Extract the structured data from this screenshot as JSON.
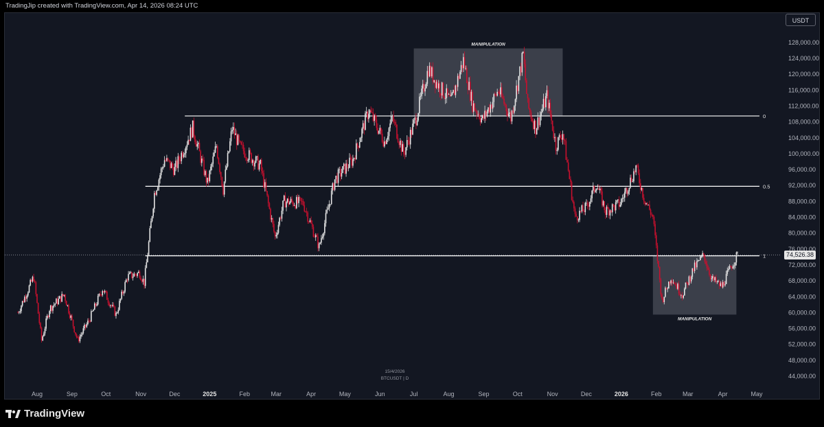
{
  "header": {
    "caption": "TradingJip created with TradingView.com, Apr 14, 2026 08:24 UTC"
  },
  "branding": {
    "logo_text": "TradingView"
  },
  "axis": {
    "currency_label": "USDT"
  },
  "watermark": {
    "date": "15/4/2026",
    "symbol": "BTCUSDT | D"
  },
  "colors": {
    "background": "#131722",
    "up": "#e6e6e6",
    "down": "#c8102e",
    "box": "#5d606b",
    "line": "#ffffff"
  },
  "chart_data": {
    "type": "candlestick",
    "symbol": "BTCUSDT",
    "timeframe": "D",
    "last_price": "74,526.38",
    "ylim": [
      42000,
      132000
    ],
    "y_ticks": [
      "44,000.00",
      "48,000.00",
      "52,000.00",
      "56,000.00",
      "60,000.00",
      "64,000.00",
      "68,000.00",
      "72,000.00",
      "76,000.00",
      "80,000.00",
      "84,000.00",
      "88,000.00",
      "92,000.00",
      "96,000.00",
      "100,000.00",
      "104,000.00",
      "108,000.00",
      "112,000.00",
      "116,000.00",
      "120,000.00",
      "124,000.00",
      "128,000.00"
    ],
    "x_ticks": [
      "Aug",
      "Sep",
      "Oct",
      "Nov",
      "Dec",
      "2025",
      "Feb",
      "Mar",
      "Apr",
      "May",
      "Jun",
      "Jul",
      "Aug",
      "Sep",
      "Oct",
      "Nov",
      "Dec",
      "2026",
      "Feb",
      "Mar",
      "Apr",
      "May"
    ],
    "x_tick_months": [
      "2024-08",
      "2024-09",
      "2024-10",
      "2024-11",
      "2024-12",
      "2025-01",
      "2025-02",
      "2025-03",
      "2025-04",
      "2025-05",
      "2025-06",
      "2025-07",
      "2025-08",
      "2025-09",
      "2025-10",
      "2025-11",
      "2025-12",
      "2026-01",
      "2026-02",
      "2026-03",
      "2026-04",
      "2026-05"
    ],
    "bold_ticks": [
      "2025",
      "2026"
    ],
    "fib_levels": [
      {
        "label": "0",
        "price": 109500,
        "start": "2024-12-10"
      },
      {
        "label": "0.5",
        "price": 91800,
        "start": "2024-11-05"
      },
      {
        "label": "1",
        "price": 74300,
        "start": "2024-11-05"
      }
    ],
    "boxes": [
      {
        "label": "MANIPULATION",
        "from": "2025-07-01",
        "to": "2025-11-10",
        "top": 126500,
        "bottom": 109500,
        "label_pos": "top"
      },
      {
        "label": "MANIPULATION",
        "from": "2026-01-29",
        "to": "2026-04-13",
        "top": 74300,
        "bottom": 59500,
        "label_pos": "bottom"
      }
    ],
    "price_path": [
      [
        "2024-07-15",
        60000
      ],
      [
        "2024-07-29",
        69000
      ],
      [
        "2024-08-05",
        53000
      ],
      [
        "2024-08-12",
        61000
      ],
      [
        "2024-08-25",
        64500
      ],
      [
        "2024-09-06",
        53000
      ],
      [
        "2024-09-16",
        58000
      ],
      [
        "2024-09-28",
        66000
      ],
      [
        "2024-10-10",
        59500
      ],
      [
        "2024-10-20",
        69000
      ],
      [
        "2024-10-31",
        70000
      ],
      [
        "2024-11-04",
        67500
      ],
      [
        "2024-11-13",
        90000
      ],
      [
        "2024-11-22",
        98500
      ],
      [
        "2024-12-01",
        96000
      ],
      [
        "2024-12-17",
        106500
      ],
      [
        "2024-12-30",
        92500
      ],
      [
        "2025-01-07",
        102000
      ],
      [
        "2025-01-13",
        91000
      ],
      [
        "2025-01-21",
        106500
      ],
      [
        "2025-01-28",
        101500
      ],
      [
        "2025-02-15",
        97000
      ],
      [
        "2025-02-28",
        79000
      ],
      [
        "2025-03-08",
        88000
      ],
      [
        "2025-03-25",
        87500
      ],
      [
        "2025-04-08",
        76500
      ],
      [
        "2025-04-22",
        93500
      ],
      [
        "2025-05-08",
        98500
      ],
      [
        "2025-05-22",
        111000
      ],
      [
        "2025-06-05",
        103000
      ],
      [
        "2025-06-12",
        109000
      ],
      [
        "2025-06-22",
        100000
      ],
      [
        "2025-07-03",
        109000
      ],
      [
        "2025-07-14",
        121500
      ],
      [
        "2025-07-22",
        117500
      ],
      [
        "2025-08-03",
        113000
      ],
      [
        "2025-08-14",
        123500
      ],
      [
        "2025-08-22",
        112500
      ],
      [
        "2025-08-31",
        108500
      ],
      [
        "2025-09-14",
        116000
      ],
      [
        "2025-09-25",
        109000
      ],
      [
        "2025-10-06",
        125000
      ],
      [
        "2025-10-10",
        112000
      ],
      [
        "2025-10-17",
        106500
      ],
      [
        "2025-10-27",
        114500
      ],
      [
        "2025-11-04",
        102000
      ],
      [
        "2025-11-10",
        105500
      ],
      [
        "2025-11-21",
        84000
      ],
      [
        "2025-12-01",
        86500
      ],
      [
        "2025-12-10",
        92500
      ],
      [
        "2025-12-18",
        85500
      ],
      [
        "2025-12-31",
        87500
      ],
      [
        "2026-01-14",
        96500
      ],
      [
        "2026-01-21",
        89000
      ],
      [
        "2026-01-29",
        84000
      ],
      [
        "2026-02-06",
        63000
      ],
      [
        "2026-02-14",
        69000
      ],
      [
        "2026-02-24",
        64500
      ],
      [
        "2026-03-06",
        71000
      ],
      [
        "2026-03-15",
        74500
      ],
      [
        "2026-03-22",
        68500
      ],
      [
        "2026-03-31",
        66500
      ],
      [
        "2026-04-09",
        72000
      ],
      [
        "2026-04-14",
        74526
      ]
    ]
  }
}
